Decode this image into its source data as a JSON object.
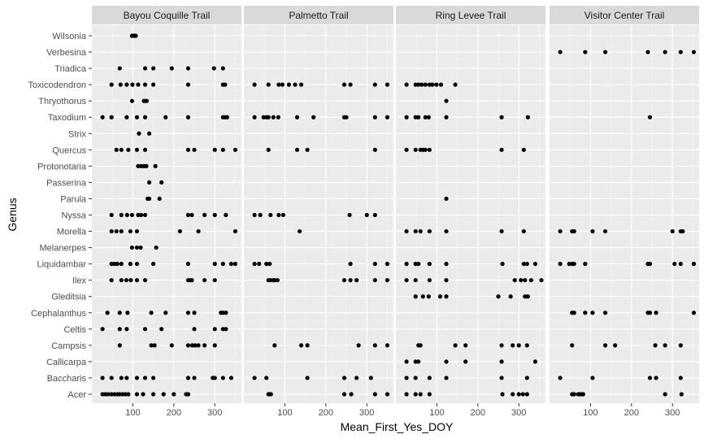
{
  "chart_data": {
    "type": "scatter",
    "xlabel": "Mean_First_Yes_DOY",
    "ylabel": "Genus",
    "xlim": [
      0,
      365
    ],
    "xticks": [
      100,
      200,
      300
    ],
    "genera": [
      "Acer",
      "Baccharis",
      "Callicarpa",
      "Campsis",
      "Celtis",
      "Cephalanthus",
      "Gleditsia",
      "Ilex",
      "Liquidambar",
      "Melanerpes",
      "Morella",
      "Nyssa",
      "Parula",
      "Passerina",
      "Protonotaria",
      "Quercus",
      "Strix",
      "Taxodium",
      "Thryothorus",
      "Toxicodendron",
      "Triadica",
      "Verbesina",
      "Wilsonia"
    ],
    "grid": true,
    "panels": [
      {
        "title": "Bayou Coquille Trail",
        "points": {
          "Wilsonia": [
            98,
            101,
            104,
            107
          ],
          "Triadica": [
            68,
            130,
            150,
            195,
            235,
            298,
            320
          ],
          "Toxicodendron": [
            48,
            70,
            85,
            99,
            113,
            130,
            150,
            235,
            320,
            325
          ],
          "Thryothorus": [
            98,
            127,
            130,
            134
          ],
          "Taxodium": [
            26,
            48,
            85,
            110,
            130,
            180,
            235,
            320,
            325,
            330
          ],
          "Strix": [
            115,
            140
          ],
          "Quercus": [
            60,
            72,
            89,
            110,
            130,
            235,
            250,
            300,
            320,
            350
          ],
          "Protonotaria": [
            113,
            120,
            127,
            133,
            155
          ],
          "Passerina": [
            140,
            170
          ],
          "Parula": [
            136,
            140,
            165
          ],
          "Nyssa": [
            48,
            72,
            86,
            98,
            113,
            120,
            130,
            235,
            244,
            275,
            300,
            327
          ],
          "Morella": [
            48,
            60,
            72,
            94,
            110,
            215,
            260,
            350
          ],
          "Melanerpes": [
            98,
            110,
            119,
            157
          ],
          "Liquidambar": [
            48,
            55,
            62,
            72,
            94,
            110,
            150,
            235,
            300,
            320,
            340,
            350
          ],
          "Ilex": [
            48,
            72,
            84,
            95,
            110,
            130,
            235,
            240,
            244,
            275,
            300
          ],
          "Cephalanthus": [
            38,
            68,
            87,
            145,
            180,
            235,
            250,
            315,
            320,
            327
          ],
          "Celtis": [
            26,
            68,
            85,
            130,
            170,
            250,
            300,
            320,
            327
          ],
          "Campsis": [
            68,
            145,
            153,
            195,
            235,
            245,
            252,
            260,
            275,
            300
          ],
          "Baccharis": [
            26,
            48,
            72,
            85,
            110,
            130,
            150,
            235,
            250,
            295,
            300,
            320,
            340
          ],
          "Acer": [
            26,
            33,
            40,
            48,
            55,
            62,
            68,
            75,
            82,
            89,
            110,
            125,
            150,
            175,
            200,
            230,
            235
          ]
        }
      },
      {
        "title": "Palmetto Trail",
        "points": {
          "Toxicodendron": [
            26,
            60,
            85,
            94,
            110,
            125,
            140,
            245,
            260,
            320,
            350
          ],
          "Taxodium": [
            26,
            48,
            55,
            60,
            72,
            84,
            130,
            170,
            245,
            250,
            320,
            350
          ],
          "Quercus": [
            60,
            130,
            155,
            320
          ],
          "Nyssa": [
            26,
            40,
            65,
            85,
            96,
            258,
            300,
            320
          ],
          "Morella": [
            136
          ],
          "Liquidambar": [
            26,
            37,
            55,
            63,
            260,
            320,
            350
          ],
          "Ilex": [
            60,
            65,
            72,
            75,
            82,
            245,
            260,
            275,
            320,
            350
          ],
          "Campsis": [
            75,
            140,
            155,
            280,
            320,
            350
          ],
          "Baccharis": [
            26,
            55,
            155,
            245,
            275,
            310
          ],
          "Acer": [
            60,
            63,
            66,
            245,
            262,
            320,
            350
          ]
        }
      },
      {
        "title": "Ring Levee Trail",
        "points": {
          "Toxicodendron": [
            26,
            48,
            55,
            63,
            72,
            82,
            89,
            99,
            110,
            145
          ],
          "Thryothorus": [
            123
          ],
          "Taxodium": [
            26,
            48,
            55,
            72,
            80,
            123,
            258,
            322
          ],
          "Quercus": [
            26,
            48,
            60,
            66,
            72,
            82,
            258,
            312
          ],
          "Parula": [
            123
          ],
          "Morella": [
            26,
            48,
            60,
            82,
            123,
            258,
            312
          ],
          "Liquidambar": [
            26,
            48,
            55,
            82,
            123,
            260,
            312,
            320,
            340
          ],
          "Ilex": [
            26,
            48,
            82,
            123,
            290,
            305,
            315,
            330,
            355
          ],
          "Gleditsia": [
            48,
            66,
            80,
            108,
            123,
            250,
            280,
            315,
            322
          ],
          "Campsis": [
            55,
            60,
            145,
            170,
            258,
            285,
            300,
            320
          ],
          "Callicarpa": [
            26,
            48,
            55,
            123,
            170,
            258,
            340
          ],
          "Baccharis": [
            26,
            48,
            82,
            123,
            258,
            320
          ],
          "Acer": [
            26,
            48,
            60,
            82,
            260,
            285,
            300,
            310,
            320
          ]
        }
      },
      {
        "title": "Visitor Center Trail",
        "points": {
          "Verbesina": [
            26,
            87,
            136,
            240,
            282,
            320,
            352
          ],
          "Taxodium": [
            245
          ],
          "Morella": [
            26,
            55,
            60,
            105,
            136,
            300,
            320,
            325
          ],
          "Liquidambar": [
            26,
            48,
            55,
            60,
            87,
            240,
            245,
            305,
            320,
            352
          ],
          "Cephalanthus": [
            55,
            60,
            87,
            105,
            136,
            240,
            245,
            260,
            352
          ],
          "Campsis": [
            55,
            136,
            160,
            258,
            282,
            320
          ],
          "Baccharis": [
            26,
            105,
            245,
            260,
            320
          ],
          "Acer": [
            55,
            60,
            70,
            74,
            78,
            82,
            282,
            322
          ]
        }
      }
    ]
  }
}
